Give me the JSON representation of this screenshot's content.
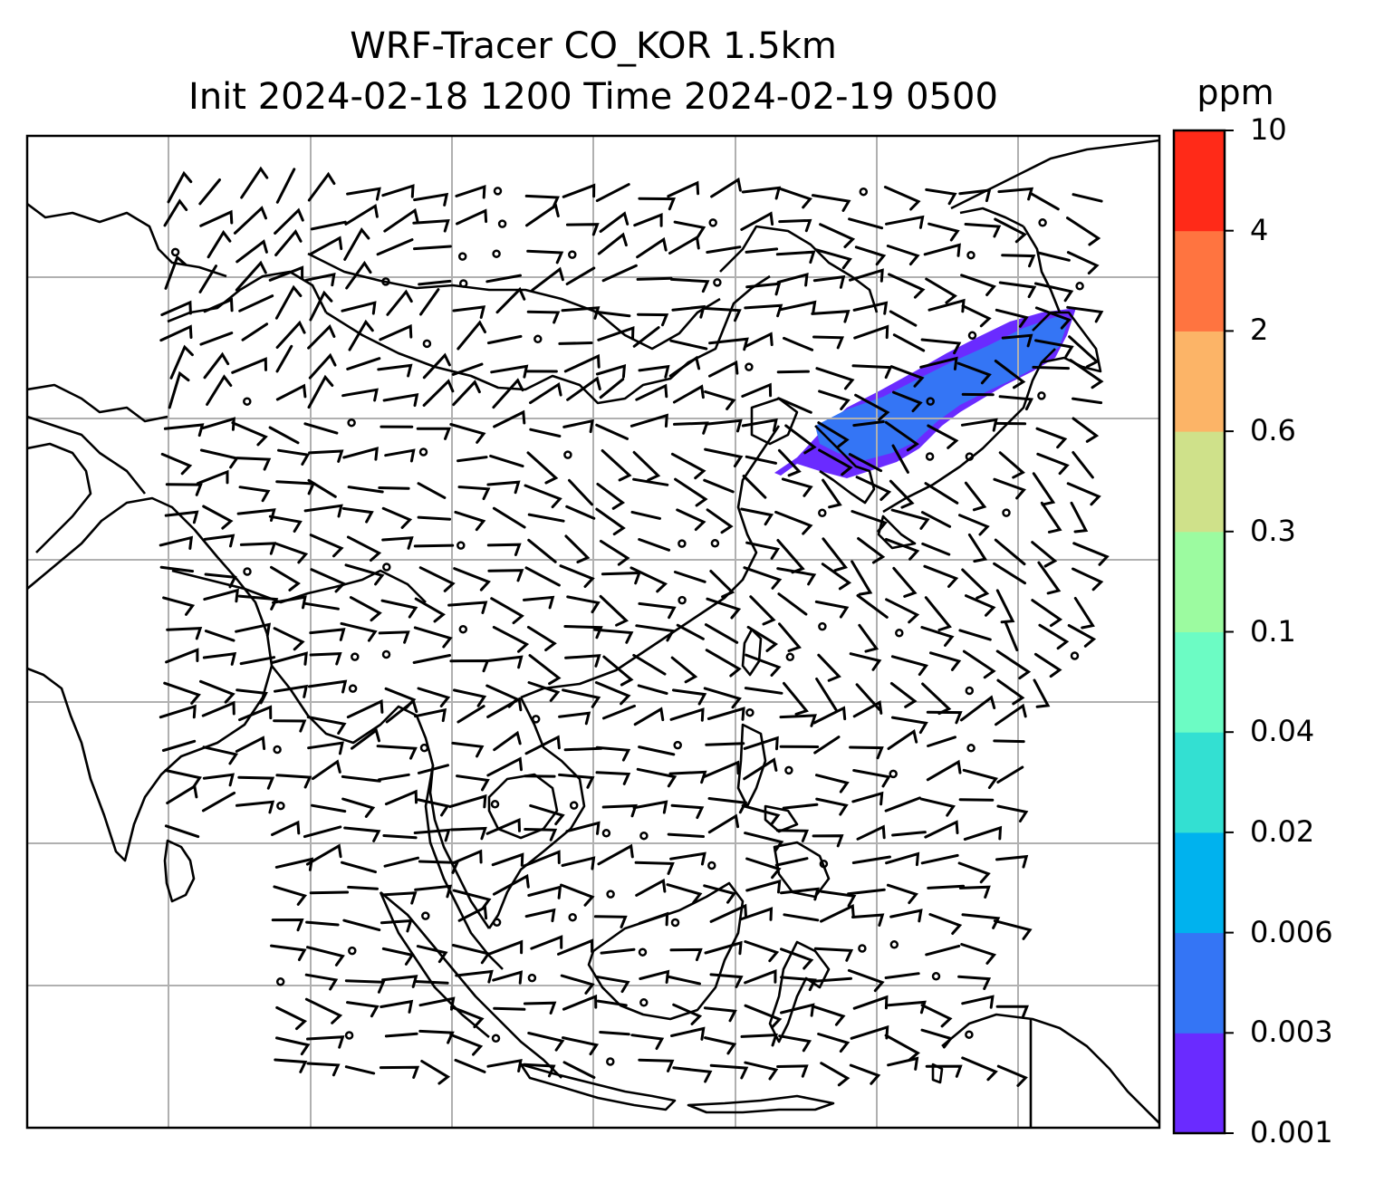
{
  "title": {
    "line1": "WRF-Tracer CO_KOR 1.5km",
    "line2": "Init 2024-02-18 1200 Time 2024-02-19 0500"
  },
  "colorbar": {
    "unit": "ppm",
    "levels": [
      "0.001",
      "0.003",
      "0.006",
      "0.02",
      "0.04",
      "0.1",
      "0.3",
      "0.6",
      "2",
      "4",
      "10"
    ],
    "colors": [
      "#6a2bff",
      "#3475f5",
      "#00b2ee",
      "#33e0d2",
      "#6cfcc4",
      "#9cfba0",
      "#cfe18a",
      "#fcb467",
      "#ff7440",
      "#ff2a18"
    ]
  },
  "map": {
    "gridlines": true,
    "features": [
      "coastlines",
      "country-borders",
      "wind-barbs",
      "tracer-plume"
    ],
    "plume_colors": [
      "#6a2bff",
      "#3475f5"
    ]
  }
}
